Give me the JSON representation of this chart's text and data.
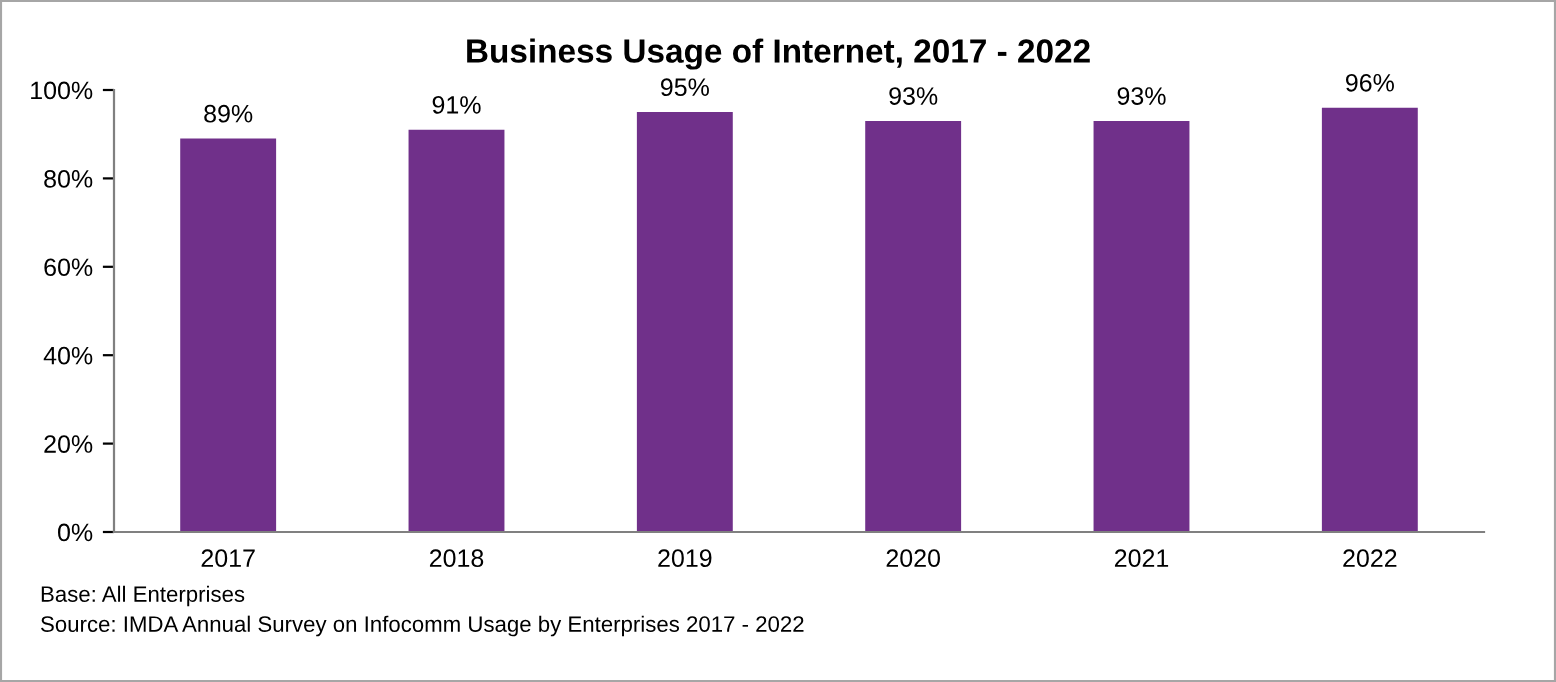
{
  "chart_data": {
    "type": "bar",
    "title": "Business Usage of Internet, 2017 - 2022",
    "categories": [
      "2017",
      "2018",
      "2019",
      "2020",
      "2021",
      "2022"
    ],
    "values": [
      89,
      91,
      95,
      93,
      93,
      96
    ],
    "value_labels": [
      "89%",
      "91%",
      "95%",
      "93%",
      "93%",
      "96%"
    ],
    "color": "#70308a",
    "ylim": [
      0,
      100
    ],
    "yticks": [
      {
        "value": 0,
        "label": "0%"
      },
      {
        "value": 20,
        "label": "20%"
      },
      {
        "value": 40,
        "label": "40%"
      },
      {
        "value": 60,
        "label": "60%"
      },
      {
        "value": 80,
        "label": "80%"
      },
      {
        "value": 100,
        "label": "100%"
      }
    ],
    "grid": false,
    "legend": false,
    "annotations": [
      "Base: All Enterprises",
      "Source: IMDA Annual Survey on Infocomm Usage by Enterprises 2017 - 2022"
    ]
  }
}
